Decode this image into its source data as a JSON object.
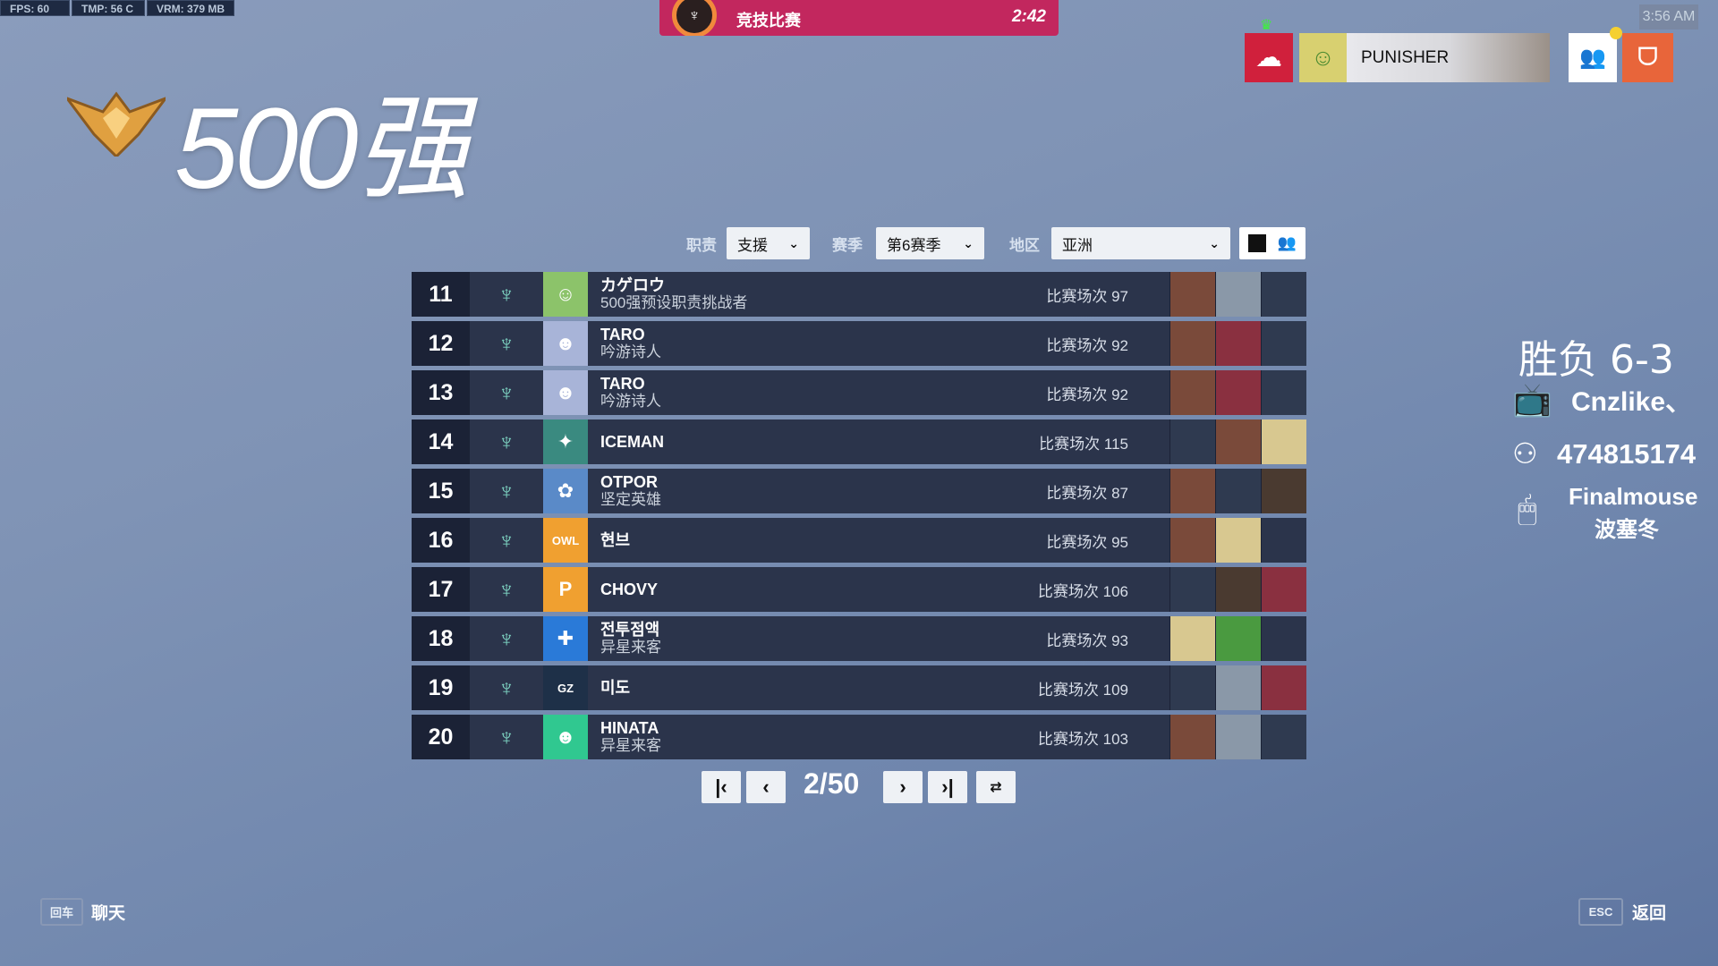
{
  "hud": {
    "fps": "FPS:  60",
    "tmp": "TMP:  56 C",
    "vrm": "VRM:  379 MB"
  },
  "banner": {
    "mode": "竞技比赛",
    "timer": "2:42",
    "color": "#c2275e"
  },
  "clock": "3:56 AM",
  "player": {
    "name": "PUNISHER"
  },
  "title": "500强",
  "filters": {
    "role_label": "职责",
    "role_value": "支援",
    "season_label": "赛季",
    "season_value": "第6赛季",
    "region_label": "地区",
    "region_value": "亚洲"
  },
  "rows": [
    {
      "rank": "11",
      "name": "カゲロウ",
      "sub": "500强预设职责挑战者",
      "games": "比赛场次 97",
      "avatar_color": "#8cc36a",
      "avatar_glyph": "☺",
      "heroes": [
        "#7a4a3a",
        "#8a98a8",
        "#2f3a50"
      ]
    },
    {
      "rank": "12",
      "name": "TARO",
      "sub": "吟游诗人",
      "games": "比赛场次 92",
      "avatar_color": "#a8b4d8",
      "avatar_glyph": "☻",
      "heroes": [
        "#7a4a3a",
        "#8a3040",
        "#2f3a50"
      ]
    },
    {
      "rank": "13",
      "name": "TARO",
      "sub": "吟游诗人",
      "games": "比赛场次 92",
      "avatar_color": "#a8b4d8",
      "avatar_glyph": "☻",
      "heroes": [
        "#7a4a3a",
        "#8a3040",
        "#2f3a50"
      ]
    },
    {
      "rank": "14",
      "name": "ICEMAN",
      "sub": "",
      "games": "比赛场次 115",
      "avatar_color": "#3a8a80",
      "avatar_glyph": "✦",
      "heroes": [
        "#2f3a50",
        "#7a4a3a",
        "#d8c890"
      ]
    },
    {
      "rank": "15",
      "name": "OTPOR",
      "sub": "坚定英雄",
      "games": "比赛场次 87",
      "avatar_color": "#5a8ac8",
      "avatar_glyph": "✿",
      "heroes": [
        "#7a4a3a",
        "#2f3a50",
        "#4a3a30"
      ]
    },
    {
      "rank": "16",
      "name": "현브",
      "sub": "",
      "games": "比赛场次 95",
      "avatar_color": "#f0a030",
      "avatar_glyph": "OWL",
      "heroes": [
        "#7a4a3a",
        "#d8c890",
        ""
      ]
    },
    {
      "rank": "17",
      "name": "CHOVY",
      "sub": "",
      "games": "比赛场次 106",
      "avatar_color": "#f0a030",
      "avatar_glyph": "P",
      "heroes": [
        "#2f3a50",
        "#4a3a30",
        "#8a3040"
      ]
    },
    {
      "rank": "18",
      "name": "전투점액",
      "sub": "异星来客",
      "games": "比赛场次 93",
      "avatar_color": "#2a7ad8",
      "avatar_glyph": "✚",
      "heroes": [
        "#d8c890",
        "#4a9a40",
        ""
      ]
    },
    {
      "rank": "19",
      "name": "미도",
      "sub": "",
      "games": "比赛场次 109",
      "avatar_color": "#1e3048",
      "avatar_glyph": "GZ",
      "heroes": [
        "#2f3a50",
        "#8a98a8",
        "#8a3040"
      ]
    },
    {
      "rank": "20",
      "name": "HINATA",
      "sub": "异星来客",
      "games": "比赛场次 103",
      "avatar_color": "#30c890",
      "avatar_glyph": "☻",
      "heroes": [
        "#7a4a3a",
        "#8a98a8",
        "#2f3a50"
      ]
    }
  ],
  "pagination": {
    "page": "2/50"
  },
  "side": {
    "record": "胜负 6-3",
    "bilibili": "Cnzlike、",
    "group": "474815174",
    "mouse": "Finalmouse",
    "mouse_sub": "波塞冬"
  },
  "footer": {
    "chat_key": "回车",
    "chat_label": "聊天",
    "back_key": "ESC",
    "back_label": "返回"
  }
}
